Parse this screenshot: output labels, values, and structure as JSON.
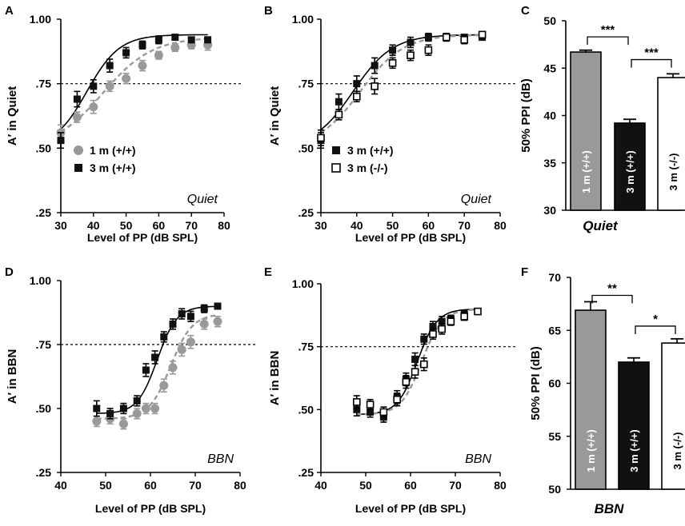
{
  "colors": {
    "wt_1m": "#999999",
    "wt_3m": "#111111",
    "ko_3m": "#ffffff",
    "axis": "#000000"
  },
  "chart_data": [
    {
      "id": "A",
      "type": "scatter",
      "panel_label": "A",
      "condition": "Quiet",
      "xlabel": "Level of PP (dB SPL)",
      "ylabel": "A′ in Quiet",
      "xlim": [
        30,
        80
      ],
      "ylim": [
        0.25,
        1.0
      ],
      "xticks": [
        30,
        40,
        50,
        60,
        70,
        80
      ],
      "yticks": [
        0.25,
        0.5,
        0.75,
        1.0
      ],
      "yticklabels": [
        ".25",
        ".50",
        ".75",
        "1.00"
      ],
      "threshold": 0.75,
      "series": [
        {
          "name": "1 m (+/+)",
          "marker": "circle",
          "color": "#999999",
          "dashed": true,
          "x": [
            30,
            35,
            40,
            45,
            50,
            55,
            60,
            65,
            70,
            75
          ],
          "y": [
            0.56,
            0.62,
            0.66,
            0.74,
            0.77,
            0.82,
            0.86,
            0.89,
            0.9,
            0.9
          ],
          "err": [
            0.03,
            0.02,
            0.025,
            0.02,
            0.02,
            0.02,
            0.015,
            0.015,
            0.015,
            0.02
          ],
          "fit": {
            "bottom": 0.5,
            "top": 0.93,
            "x50": 43,
            "slope": 7.5
          }
        },
        {
          "name": "3 m (+/+)",
          "marker": "square",
          "color": "#111111",
          "dashed": false,
          "x": [
            30,
            35,
            40,
            45,
            50,
            55,
            60,
            65,
            70,
            75
          ],
          "y": [
            0.53,
            0.69,
            0.74,
            0.82,
            0.87,
            0.9,
            0.92,
            0.93,
            0.92,
            0.92
          ],
          "err": [
            0.03,
            0.03,
            0.025,
            0.025,
            0.02,
            0.015,
            0.015,
            0.01,
            0.01,
            0.01
          ],
          "fit": {
            "bottom": 0.5,
            "top": 0.94,
            "x50": 38,
            "slope": 5
          }
        }
      ]
    },
    {
      "id": "B",
      "type": "scatter",
      "panel_label": "B",
      "condition": "Quiet",
      "xlabel": "Level of PP (dB SPL)",
      "ylabel": "A′ in Quiet",
      "xlim": [
        30,
        80
      ],
      "ylim": [
        0.25,
        1.0
      ],
      "xticks": [
        30,
        40,
        50,
        60,
        70,
        80
      ],
      "yticks": [
        0.25,
        0.5,
        0.75,
        1.0
      ],
      "yticklabels": [
        ".25",
        ".50",
        ".75",
        "1.00"
      ],
      "threshold": 0.75,
      "series": [
        {
          "name": "3 m (+/+)",
          "marker": "square",
          "color": "#111111",
          "dashed": false,
          "x": [
            30,
            35,
            40,
            45,
            50,
            55,
            60,
            65,
            70,
            75
          ],
          "y": [
            0.53,
            0.68,
            0.75,
            0.82,
            0.88,
            0.91,
            0.93,
            0.93,
            0.93,
            0.93
          ],
          "err": [
            0.03,
            0.03,
            0.03,
            0.03,
            0.02,
            0.02,
            0.015,
            0.01,
            0.01,
            0.01
          ],
          "fit": {
            "bottom": 0.5,
            "top": 0.94,
            "x50": 39,
            "slope": 5.5
          }
        },
        {
          "name": "3 m (-/-)",
          "marker": "open-square",
          "color": "#ffffff",
          "dashed": true,
          "x": [
            30,
            35,
            40,
            45,
            50,
            55,
            60,
            65,
            70,
            75
          ],
          "y": [
            0.54,
            0.63,
            0.7,
            0.74,
            0.83,
            0.86,
            0.88,
            0.93,
            0.92,
            0.94
          ],
          "err": [
            0.03,
            0.02,
            0.02,
            0.03,
            0.02,
            0.02,
            0.02,
            0.015,
            0.015,
            0.01
          ],
          "fit": {
            "bottom": 0.5,
            "top": 0.94,
            "x50": 41,
            "slope": 6
          }
        }
      ]
    },
    {
      "id": "C",
      "type": "bar",
      "panel_label": "C",
      "condition": "Quiet",
      "xlabel": "",
      "ylabel": "50% PPI (dB)",
      "ylim": [
        30,
        50
      ],
      "yticks": [
        30,
        35,
        40,
        45,
        50
      ],
      "categories": [
        "1 m (+/+)",
        "3 m (+/+)",
        "3 m (-/-)"
      ],
      "values": [
        46.7,
        39.2,
        44.0
      ],
      "err": [
        0.2,
        0.4,
        0.4
      ],
      "bar_colors": [
        "#999999",
        "#111111",
        "#ffffff"
      ],
      "label_colors": [
        "#ffffff",
        "#ffffff",
        "#000000"
      ],
      "significance": [
        {
          "from": 0,
          "to": 1,
          "label": "***",
          "y": 48.3
        },
        {
          "from": 1,
          "to": 2,
          "label": "***",
          "y": 45.9
        }
      ]
    },
    {
      "id": "D",
      "type": "scatter",
      "panel_label": "D",
      "condition": "BBN",
      "xlabel": "Level of PP (dB SPL)",
      "ylabel": "A′ in BBN",
      "xlim": [
        40,
        80
      ],
      "ylim": [
        0.25,
        1.0
      ],
      "xticks": [
        40,
        50,
        60,
        70,
        80
      ],
      "yticks": [
        0.25,
        0.5,
        0.75,
        1.0
      ],
      "yticklabels": [
        ".25",
        ".50",
        ".75",
        "1.00"
      ],
      "threshold": 0.75,
      "series": [
        {
          "name": "1 m (+/+)",
          "marker": "circle",
          "color": "#999999",
          "dashed": true,
          "x": [
            48,
            51,
            54,
            57,
            59,
            61,
            63,
            65,
            67,
            69,
            72,
            75
          ],
          "y": [
            0.45,
            0.46,
            0.44,
            0.48,
            0.5,
            0.5,
            0.59,
            0.66,
            0.73,
            0.76,
            0.83,
            0.84
          ],
          "err": [
            0.02,
            0.02,
            0.02,
            0.02,
            0.02,
            0.02,
            0.025,
            0.025,
            0.025,
            0.025,
            0.02,
            0.02
          ],
          "fit": {
            "bottom": 0.46,
            "top": 0.87,
            "x50": 64.5,
            "slope": 2.4
          }
        },
        {
          "name": "3 m (+/+)",
          "marker": "square",
          "color": "#111111",
          "dashed": false,
          "x": [
            48,
            51,
            54,
            57,
            59,
            61,
            63,
            65,
            67,
            69,
            72,
            75
          ],
          "y": [
            0.5,
            0.48,
            0.5,
            0.53,
            0.65,
            0.7,
            0.78,
            0.83,
            0.87,
            0.86,
            0.89,
            0.9
          ],
          "err": [
            0.03,
            0.02,
            0.02,
            0.02,
            0.025,
            0.025,
            0.02,
            0.02,
            0.02,
            0.02,
            0.015,
            0.01
          ],
          "fit": {
            "bottom": 0.48,
            "top": 0.9,
            "x50": 61.5,
            "slope": 2.2
          }
        }
      ]
    },
    {
      "id": "E",
      "type": "scatter",
      "panel_label": "E",
      "condition": "BBN",
      "xlabel": "Level of PP (dB SPL)",
      "ylabel": "A′ in BBN",
      "xlim": [
        40,
        80
      ],
      "ylim": [
        0.25,
        1.0
      ],
      "xticks": [
        40,
        50,
        60,
        70,
        80
      ],
      "yticks": [
        0.25,
        0.5,
        0.75,
        1.0
      ],
      "yticklabels": [
        ".25",
        ".50",
        ".75",
        "1.00"
      ],
      "threshold": 0.75,
      "series": [
        {
          "name": "3 m (+/+)",
          "marker": "square",
          "color": "#111111",
          "dashed": false,
          "x": [
            48,
            51,
            54,
            57,
            59,
            61,
            63,
            65,
            67,
            69,
            72,
            75
          ],
          "y": [
            0.5,
            0.49,
            0.47,
            0.55,
            0.62,
            0.7,
            0.78,
            0.83,
            0.85,
            0.86,
            0.88,
            0.89
          ],
          "err": [
            0.025,
            0.02,
            0.02,
            0.025,
            0.025,
            0.025,
            0.02,
            0.02,
            0.02,
            0.015,
            0.015,
            0.01
          ],
          "fit": {
            "bottom": 0.48,
            "top": 0.9,
            "x50": 61.5,
            "slope": 2.2
          }
        },
        {
          "name": "3 m (-/-)",
          "marker": "open-square",
          "color": "#ffffff",
          "dashed": true,
          "x": [
            48,
            51,
            54,
            57,
            59,
            61,
            63,
            65,
            67,
            69,
            72,
            75
          ],
          "y": [
            0.53,
            0.52,
            0.49,
            0.54,
            0.61,
            0.65,
            0.68,
            0.8,
            0.82,
            0.85,
            0.87,
            0.89
          ],
          "err": [
            0.025,
            0.02,
            0.02,
            0.025,
            0.025,
            0.025,
            0.025,
            0.02,
            0.02,
            0.015,
            0.015,
            0.01
          ],
          "fit": {
            "bottom": 0.48,
            "top": 0.9,
            "x50": 62.5,
            "slope": 2.3
          }
        }
      ]
    },
    {
      "id": "F",
      "type": "bar",
      "panel_label": "F",
      "condition": "BBN",
      "xlabel": "",
      "ylabel": "50% PPI (dB)",
      "ylim": [
        50,
        70
      ],
      "yticks": [
        50,
        55,
        60,
        65,
        70
      ],
      "categories": [
        "1 m (+/+)",
        "3 m (+/+)",
        "3 m (-/-)"
      ],
      "values": [
        66.9,
        62.0,
        63.8
      ],
      "err": [
        0.8,
        0.4,
        0.4
      ],
      "bar_colors": [
        "#999999",
        "#111111",
        "#ffffff"
      ],
      "label_colors": [
        "#ffffff",
        "#ffffff",
        "#000000"
      ],
      "significance": [
        {
          "from": 0,
          "to": 1,
          "label": "**",
          "y": 68.3
        },
        {
          "from": 1,
          "to": 2,
          "label": "*",
          "y": 65.4
        }
      ]
    }
  ]
}
